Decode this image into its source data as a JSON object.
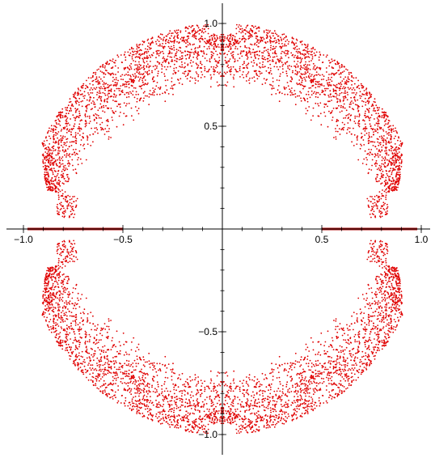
{
  "chart_data": {
    "type": "scatter",
    "title": "",
    "xlabel": "",
    "ylabel": "",
    "xlim": [
      -1.0,
      1.0
    ],
    "ylim": [
      -1.05,
      1.05
    ],
    "grid": false,
    "legend": "none",
    "point_color": "#e00000",
    "segment_color": "#b01010",
    "x_ticks": [
      {
        "value": -1.0,
        "label": "−1.0"
      },
      {
        "value": -0.5,
        "label": "−0.5"
      },
      {
        "value": 0.5,
        "label": "0.5"
      },
      {
        "value": 1.0,
        "label": "1.0"
      }
    ],
    "y_ticks": [
      {
        "value": 1.0,
        "label": "1.0"
      },
      {
        "value": 0.5,
        "label": "0.5"
      },
      {
        "value": -0.5,
        "label": "−0.5"
      },
      {
        "value": -1.0,
        "label": "−1.0"
      }
    ],
    "real_axis_segments": [
      {
        "from": -0.98,
        "to": -0.5
      },
      {
        "from": 0.5,
        "to": 0.98
      }
    ],
    "point_cloud": {
      "shape": "annulus",
      "outer_radius": 1.0,
      "inner_radius": 0.68,
      "mirror_symmetry": "x and y axes",
      "gap_near_real_axis_deg": 12,
      "notches_at_deg": [
        90,
        270,
        60,
        120,
        240,
        300
      ]
    }
  }
}
